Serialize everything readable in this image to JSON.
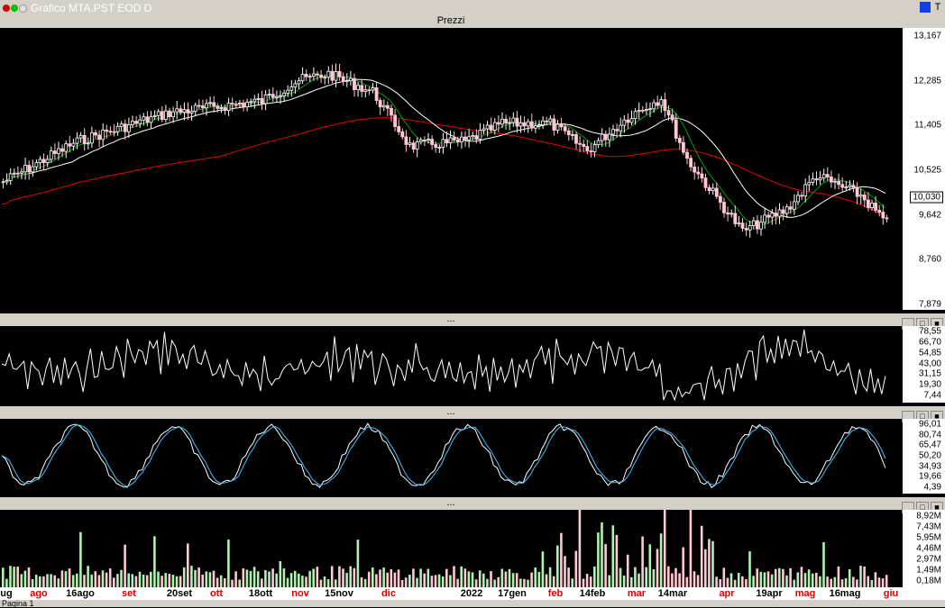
{
  "window": {
    "title": "Grafico MTA.PST EOD D",
    "right_buttons": [
      "",
      "T"
    ]
  },
  "panels": {
    "price": {
      "title": "Prezzi",
      "y_ticks": [
        "13,167",
        "12,285",
        "11,405",
        "10,525",
        "9,642",
        "8,760",
        "7,879"
      ],
      "last_price": "10,030",
      "colors": {
        "up_candle": "#ffffff",
        "down_candle": "#ffc8d2",
        "ma_short": "#00a000",
        "ma_mid": "#ffffff",
        "ma_long": "#e00000"
      }
    },
    "rsi": {
      "title": "...",
      "y_ticks": [
        "78,55",
        "66,70",
        "54,85",
        "43,00",
        "31,15",
        "19,30",
        "7,44"
      ]
    },
    "stochastic": {
      "title": "...",
      "y_ticks": [
        "96,01",
        "80,74",
        "65,47",
        "50,20",
        "34,93",
        "19,66",
        "4,39"
      ],
      "colors": {
        "k_line": "#ffffff",
        "d_line": "#40c0ff"
      }
    },
    "volume": {
      "title": "...",
      "y_ticks": [
        "8,92M",
        "7,43M",
        "5,95M",
        "4,46M",
        "2,97M",
        "1,49M",
        "0,18M"
      ],
      "colors": {
        "up_volume": "#b0f0b0",
        "down_volume": "#ffc8d2"
      }
    }
  },
  "x_axis": {
    "labels": [
      {
        "text": "ug",
        "color": "#000000"
      },
      {
        "text": "ago",
        "color": "#e00000"
      },
      {
        "text": "16ago",
        "color": "#000000"
      },
      {
        "text": "set",
        "color": "#e00000"
      },
      {
        "text": "20set",
        "color": "#000000"
      },
      {
        "text": "ott",
        "color": "#e00000"
      },
      {
        "text": "18ott",
        "color": "#000000"
      },
      {
        "text": "nov",
        "color": "#e00000"
      },
      {
        "text": "15nov",
        "color": "#000000"
      },
      {
        "text": "dic",
        "color": "#e00000"
      },
      {
        "text": "2022",
        "color": "#000000"
      },
      {
        "text": "17gen",
        "color": "#000000"
      },
      {
        "text": "feb",
        "color": "#e00000"
      },
      {
        "text": "14feb",
        "color": "#000000"
      },
      {
        "text": "mar",
        "color": "#e00000"
      },
      {
        "text": "14mar",
        "color": "#000000"
      },
      {
        "text": "apr",
        "color": "#e00000"
      },
      {
        "text": "19apr",
        "color": "#000000"
      },
      {
        "text": "mag",
        "color": "#e00000"
      },
      {
        "text": "16mag",
        "color": "#000000"
      },
      {
        "text": "giu",
        "color": "#e00000"
      }
    ]
  },
  "bottom_tab": {
    "label": "Pagina 1"
  }
}
